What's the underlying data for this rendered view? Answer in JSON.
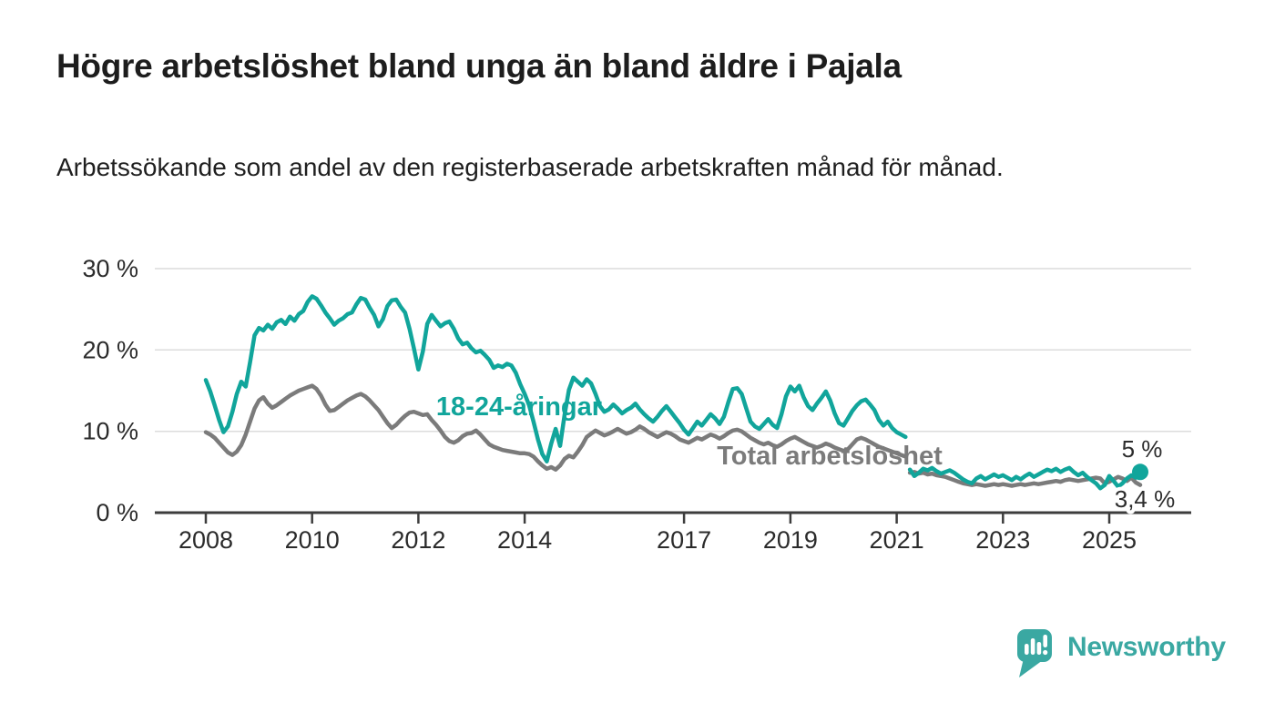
{
  "title": "Högre arbetslöshet bland unga än bland äldre i Pajala",
  "subtitle": "Arbetssökande som andel av den registerbaserade arbetskraften månad för månad.",
  "branding": {
    "logo_text": "Newsworthy",
    "logo_color": "#3aa8a2",
    "logo_icon": "speech-bubble-bar-chart"
  },
  "chart_data": {
    "type": "line",
    "unit": "%",
    "grid": "horizontal",
    "legend_position": "inline-labels",
    "ylim": [
      0,
      30
    ],
    "x_range": [
      "2008-01",
      "2025-08"
    ],
    "y_ticks": [
      {
        "label": "30 %",
        "value": 30
      },
      {
        "label": "20 %",
        "value": 20
      },
      {
        "label": "10 %",
        "value": 10
      },
      {
        "label": "0 %",
        "value": 0
      }
    ],
    "x_ticks": [
      {
        "label": "2008",
        "year": 2008
      },
      {
        "label": "2010",
        "year": 2010
      },
      {
        "label": "2012",
        "year": 2012
      },
      {
        "label": "2014",
        "year": 2014
      },
      {
        "label": "2017",
        "year": 2017
      },
      {
        "label": "2019",
        "year": 2019
      },
      {
        "label": "2021",
        "year": 2021
      },
      {
        "label": "2023",
        "year": 2023
      },
      {
        "label": "2025",
        "year": 2025
      }
    ],
    "series": [
      {
        "name": "18-24-åringar",
        "color": "#11a59b",
        "end_label": "5 %",
        "end_value": 5.0,
        "segments": [
          {
            "start": "2008-01",
            "values": [
              16.3,
              14.9,
              13.2,
              11.4,
              9.9,
              10.6,
              12.4,
              14.6,
              16.1,
              15.5,
              18.5,
              21.8,
              22.7,
              22.4,
              23.1,
              22.6,
              23.4,
              23.7,
              23.2,
              24.1,
              23.6,
              24.4,
              24.8,
              25.9,
              26.6,
              26.3,
              25.5,
              24.6,
              23.9,
              23.1,
              23.6,
              23.9,
              24.4,
              24.6,
              25.6,
              26.4,
              26.2,
              25.2,
              24.3,
              22.9,
              23.8,
              25.4,
              26.1,
              26.2,
              25.3,
              24.6,
              22.6,
              20.2,
              17.6,
              19.8,
              23.2,
              24.3,
              23.6,
              22.9,
              23.3,
              23.5,
              22.6,
              21.4,
              20.7,
              20.9,
              20.2,
              19.7,
              19.9,
              19.4,
              18.8,
              17.8,
              18.1,
              17.9,
              18.3,
              18.1,
              17.2,
              15.8,
              14.6,
              13.2,
              11.2,
              9.0,
              7.2,
              6.3,
              8.5,
              10.3,
              8.2,
              12.0,
              15.1,
              16.6,
              16.1,
              15.6,
              16.4,
              15.9,
              14.6,
              13.1,
              12.4,
              12.7,
              13.3,
              12.8,
              12.2,
              12.6,
              12.9,
              13.4,
              12.7,
              12.1,
              11.6,
              11.2,
              11.8,
              12.5,
              13.1,
              12.4,
              11.7,
              11.0,
              10.2,
              9.6,
              10.4,
              11.2,
              10.7,
              11.4,
              12.1,
              11.6,
              10.9,
              11.8,
              13.6,
              15.2,
              15.3,
              14.6,
              12.9,
              11.2,
              10.6,
              10.3,
              10.9,
              11.5,
              10.8,
              10.4,
              12.1,
              14.3,
              15.5,
              14.9,
              15.6,
              14.2,
              13.1,
              12.6,
              13.4,
              14.1,
              14.9,
              13.8,
              12.2,
              11.0,
              10.7,
              11.6,
              12.5,
              13.2,
              13.7,
              13.9,
              13.3,
              12.6,
              11.4,
              10.7,
              11.2,
              10.4,
              9.9,
              9.6,
              9.3
            ]
          },
          {
            "start": "2021-04",
            "values": [
              5.3,
              4.5,
              4.9,
              5.4,
              5.2,
              5.5,
              5.1,
              4.8,
              5.0,
              5.2,
              4.9,
              4.5,
              4.1,
              3.8,
              3.6,
              4.2,
              4.5,
              4.1,
              4.4,
              4.7,
              4.4,
              4.6,
              4.3,
              4.0,
              4.4,
              4.1,
              4.5,
              4.8,
              4.4,
              4.7,
              5.0,
              5.3,
              5.1,
              5.4,
              5.0,
              5.3,
              5.5,
              5.0,
              4.6,
              4.9,
              4.4,
              4.0,
              3.6,
              3.0,
              3.4,
              4.5,
              3.9,
              3.2,
              3.6,
              4.2,
              4.6,
              4.3,
              5.0
            ]
          }
        ]
      },
      {
        "name": "Total arbetslöshet",
        "color": "#7b7b7b",
        "end_label": "3,4 %",
        "end_value": 3.4,
        "segments": [
          {
            "start": "2008-01",
            "values": [
              9.9,
              9.6,
              9.2,
              8.6,
              8.0,
              7.4,
              7.1,
              7.5,
              8.3,
              9.6,
              11.2,
              12.8,
              13.8,
              14.2,
              13.4,
              12.9,
              13.2,
              13.6,
              14.0,
              14.4,
              14.7,
              15.0,
              15.2,
              15.4,
              15.6,
              15.2,
              14.4,
              13.3,
              12.5,
              12.6,
              13.0,
              13.4,
              13.8,
              14.1,
              14.4,
              14.6,
              14.3,
              13.8,
              13.2,
              12.6,
              11.8,
              11.0,
              10.4,
              10.8,
              11.4,
              11.9,
              12.3,
              12.4,
              12.2,
              12.0,
              12.1,
              11.4,
              10.8,
              10.1,
              9.3,
              8.8,
              8.6,
              8.9,
              9.4,
              9.7,
              9.8,
              10.1,
              9.6,
              9.0,
              8.4,
              8.1,
              7.9,
              7.7,
              7.6,
              7.5,
              7.4,
              7.3,
              7.3,
              7.2,
              6.9,
              6.3,
              5.8,
              5.4,
              5.6,
              5.3,
              5.8,
              6.6,
              7.0,
              6.8,
              7.5,
              8.3,
              9.3,
              9.7,
              10.1,
              9.8,
              9.5,
              9.7,
              10.0,
              10.3,
              10.0,
              9.7,
              9.9,
              10.2,
              10.6,
              10.3,
              9.9,
              9.6,
              9.3,
              9.6,
              9.9,
              9.7,
              9.4,
              9.0,
              8.8,
              8.6,
              8.9,
              9.2,
              9.0,
              9.3,
              9.6,
              9.4,
              9.1,
              9.4,
              9.8,
              10.1,
              10.2,
              10.0,
              9.6,
              9.2,
              8.9,
              8.6,
              8.4,
              8.6,
              8.3,
              8.1,
              8.4,
              8.8,
              9.1,
              9.3,
              9.0,
              8.7,
              8.4,
              8.2,
              8.0,
              8.2,
              8.5,
              8.3,
              8.0,
              7.8,
              7.6,
              7.8,
              8.4,
              9.0,
              9.2,
              9.0,
              8.7,
              8.4,
              8.1,
              7.9,
              7.7,
              7.5,
              7.3,
              7.1,
              6.9
            ]
          },
          {
            "start": "2021-04",
            "values": [
              4.9,
              5.0,
              4.8,
              4.9,
              4.7,
              4.8,
              4.6,
              4.5,
              4.4,
              4.2,
              4.0,
              3.8,
              3.6,
              3.5,
              3.4,
              3.5,
              3.4,
              3.3,
              3.4,
              3.5,
              3.4,
              3.5,
              3.4,
              3.3,
              3.4,
              3.5,
              3.4,
              3.5,
              3.6,
              3.5,
              3.6,
              3.7,
              3.8,
              3.9,
              3.8,
              4.0,
              4.1,
              4.0,
              3.9,
              4.0,
              4.1,
              4.2,
              4.3,
              4.2,
              3.6,
              3.8,
              4.1,
              4.4,
              4.2,
              3.9,
              4.3,
              3.7,
              3.4
            ]
          }
        ]
      }
    ]
  }
}
